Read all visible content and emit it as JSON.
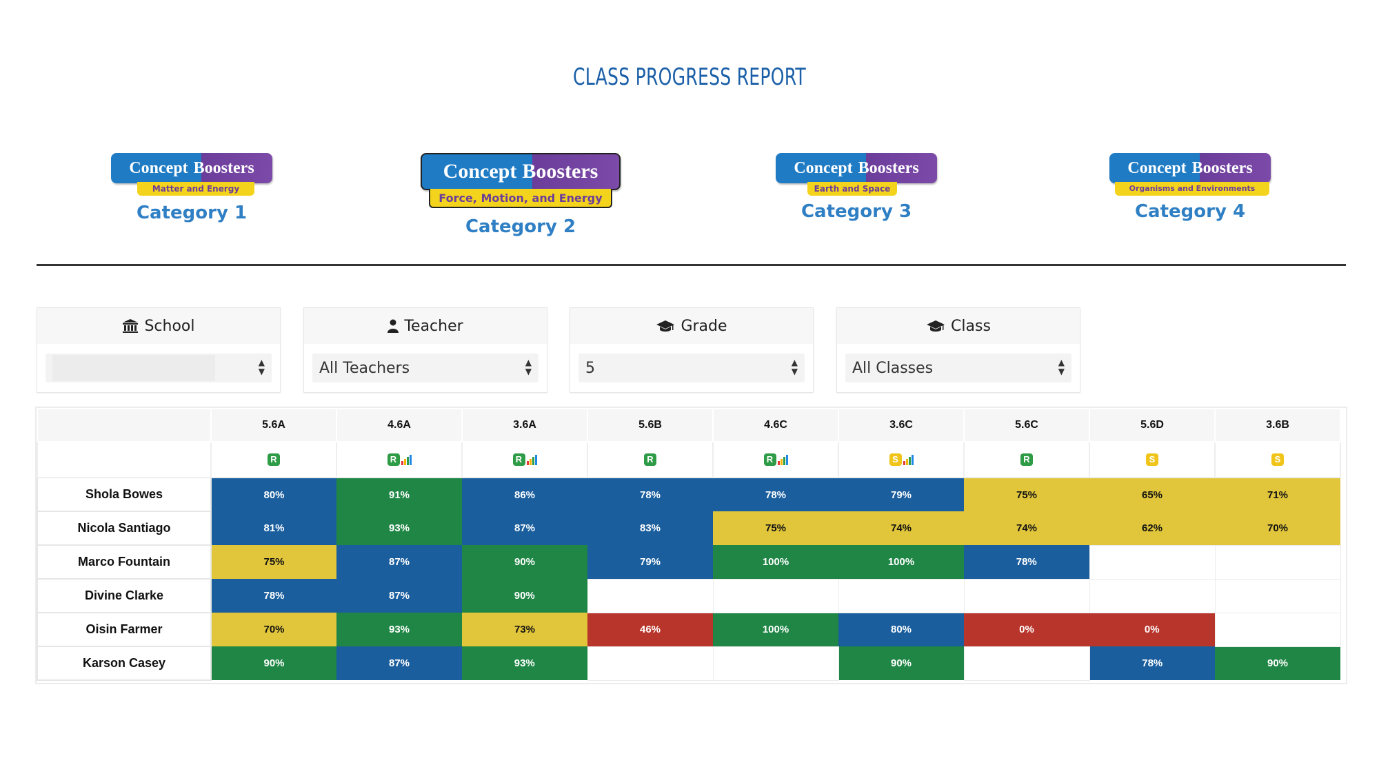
{
  "page": {
    "title": "CLASS PROGRESS REPORT"
  },
  "categories": [
    {
      "brand_left": "Concept",
      "brand_right": "Boosters",
      "subtitle": "Matter and Energy",
      "label": "Category 1"
    },
    {
      "brand_left": "Concept",
      "brand_right": "Boosters",
      "subtitle": "Force, Motion, and Energy",
      "label": "Category 2"
    },
    {
      "brand_left": "Concept",
      "brand_right": "Boosters",
      "subtitle": "Earth and Space",
      "label": "Category 3"
    },
    {
      "brand_left": "Concept",
      "brand_right": "Boosters",
      "subtitle": "Organisms and Environments",
      "label": "Category 4"
    }
  ],
  "filters": {
    "school": {
      "label": "School",
      "value": ""
    },
    "teacher": {
      "label": "Teacher",
      "value": "All Teachers"
    },
    "grade": {
      "label": "Grade",
      "value": "5"
    },
    "class": {
      "label": "Class",
      "value": "All Classes"
    }
  },
  "columns": [
    {
      "code": "5.6A",
      "mode": "R",
      "bars": false
    },
    {
      "code": "4.6A",
      "mode": "R",
      "bars": true
    },
    {
      "code": "3.6A",
      "mode": "R",
      "bars": true
    },
    {
      "code": "5.6B",
      "mode": "R",
      "bars": false
    },
    {
      "code": "4.6C",
      "mode": "R",
      "bars": true
    },
    {
      "code": "3.6C",
      "mode": "S",
      "bars": true
    },
    {
      "code": "5.6C",
      "mode": "R",
      "bars": false
    },
    {
      "code": "5.6D",
      "mode": "S",
      "bars": false
    },
    {
      "code": "3.6B",
      "mode": "S",
      "bars": false
    }
  ],
  "students": [
    {
      "name": "Shola Bowes",
      "scores": [
        "80%",
        "91%",
        "86%",
        "78%",
        "78%",
        "79%",
        "75%",
        "65%",
        "71%"
      ]
    },
    {
      "name": "Nicola Santiago",
      "scores": [
        "81%",
        "93%",
        "87%",
        "83%",
        "75%",
        "74%",
        "74%",
        "62%",
        "70%"
      ]
    },
    {
      "name": "Marco Fountain",
      "scores": [
        "75%",
        "87%",
        "90%",
        "79%",
        "100%",
        "100%",
        "78%",
        "",
        ""
      ]
    },
    {
      "name": "Divine Clarke",
      "scores": [
        "78%",
        "87%",
        "90%",
        "",
        "",
        "",
        "",
        "",
        ""
      ]
    },
    {
      "name": "Oisin Farmer",
      "scores": [
        "70%",
        "93%",
        "73%",
        "46%",
        "100%",
        "80%",
        "0%",
        "0%",
        ""
      ]
    },
    {
      "name": "Karson Casey",
      "scores": [
        "90%",
        "87%",
        "93%",
        "",
        "",
        "90%",
        "",
        "78%",
        "90%"
      ]
    }
  ],
  "cell_colors": [
    [
      "blue",
      "green",
      "blue",
      "blue",
      "blue",
      "blue",
      "yellow",
      "yellow",
      "yellow"
    ],
    [
      "blue",
      "green",
      "blue",
      "blue",
      "yellow",
      "yellow",
      "yellow",
      "yellow",
      "yellow"
    ],
    [
      "yellow",
      "blue",
      "green",
      "blue",
      "green",
      "green",
      "blue",
      "empty",
      "empty"
    ],
    [
      "blue",
      "blue",
      "green",
      "empty",
      "empty",
      "empty",
      "empty",
      "empty",
      "empty"
    ],
    [
      "yellow",
      "green",
      "yellow",
      "red",
      "green",
      "blue",
      "red",
      "red",
      "empty"
    ],
    [
      "green",
      "blue",
      "green",
      "empty",
      "empty",
      "green",
      "empty",
      "blue",
      "green"
    ]
  ],
  "colors": {
    "blue": "#1a5e9e",
    "green": "#1f8645",
    "yellow": "#e1c63c",
    "red": "#b8352b",
    "title": "#1a5fa8",
    "category_label": "#2f7fc4"
  },
  "icons": {
    "school": "building-columns-icon",
    "teacher": "user-icon",
    "grade": "graduation-cap-icon",
    "class": "graduation-cap-icon",
    "select": "sort-arrows-icon"
  }
}
